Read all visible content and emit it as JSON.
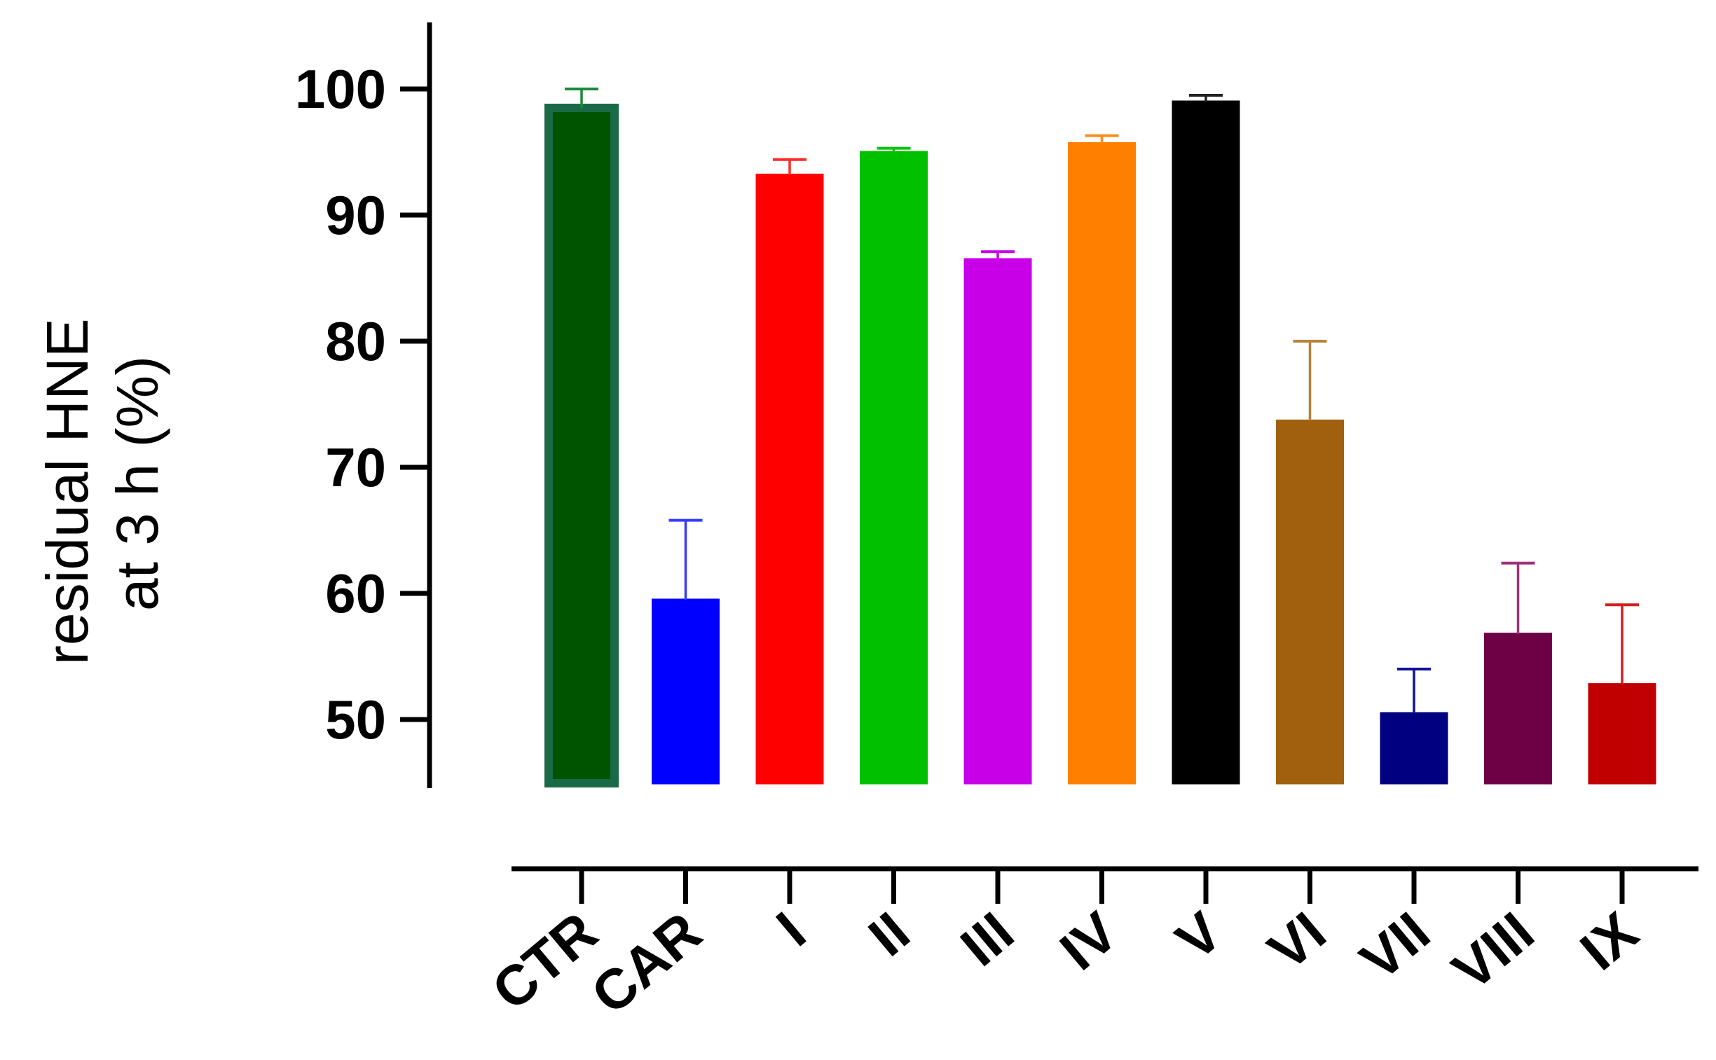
{
  "chart_data": {
    "type": "bar",
    "ylabel_lines": [
      "residual HNE",
      "at 3 h (%)"
    ],
    "xlabel": "",
    "ylim": [
      45,
      105
    ],
    "yticks": [
      50,
      60,
      70,
      80,
      90,
      100
    ],
    "grid": false,
    "legend": "none",
    "categories": [
      "CTR",
      "CAR",
      "I",
      "II",
      "III",
      "IV",
      "V",
      "VI",
      "VII",
      "VIII",
      "IX"
    ],
    "values": [
      98.5,
      59.5,
      93.2,
      95.0,
      86.5,
      95.7,
      99.0,
      73.7,
      50.5,
      56.8,
      52.8
    ],
    "errors": [
      1.5,
      6.3,
      1.2,
      0.3,
      0.6,
      0.6,
      0.5,
      6.3,
      3.5,
      5.6,
      6.3
    ],
    "colors": [
      "#005400",
      "#0000ff",
      "#ff0000",
      "#00c000",
      "#c800e8",
      "#ff8000",
      "#000000",
      "#a0600e",
      "#000080",
      "#6e0046",
      "#c00000"
    ],
    "edge_colors": [
      "#1a6a48",
      "#0000ff",
      "#ff0000",
      "#00c000",
      "#c800e8",
      "#ff8000",
      "#000000",
      "#a0600e",
      "#000080",
      "#6e0046",
      "#c00000"
    ],
    "error_colors": [
      "#1a8a3a",
      "#3a3aff",
      "#ff2a2a",
      "#10c010",
      "#c800e8",
      "#ff8c1a",
      "#222222",
      "#b8803a",
      "#1010a0",
      "#a0307a",
      "#d02020"
    ]
  }
}
